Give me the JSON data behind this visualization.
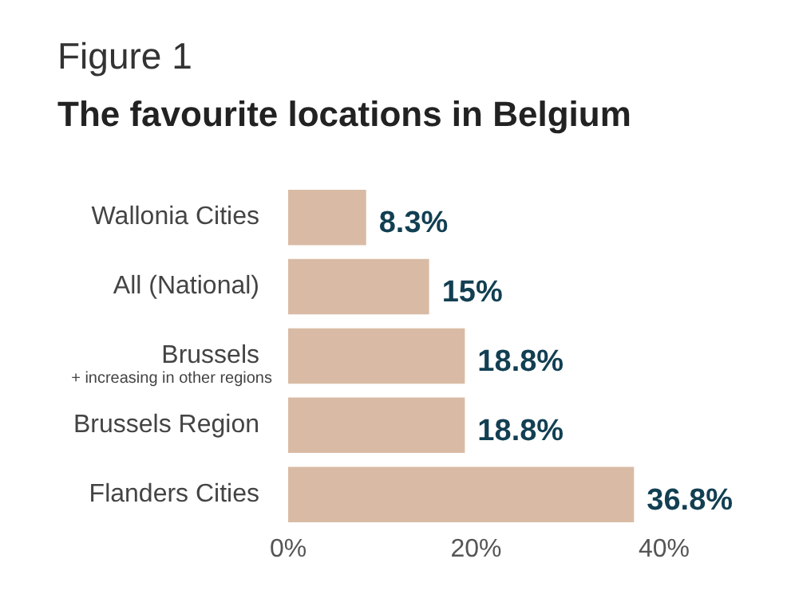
{
  "chart_data": {
    "type": "bar",
    "orientation": "horizontal",
    "subtitle": "Figure 1",
    "title": "The favourite locations in Belgium",
    "categories": [
      "Wallonia Cities",
      "All (National)",
      "Brussels",
      "Brussels Region",
      "Flanders Cities"
    ],
    "values": [
      8.3,
      15,
      18.8,
      18.8,
      36.8
    ],
    "value_labels": [
      "8.3%",
      "15%",
      "18.8%",
      "18.8%",
      "36.8%"
    ],
    "color": "#d9bba5",
    "xlim": [
      0,
      40
    ],
    "xticks": [
      {
        "value": 0,
        "label": "0%"
      },
      {
        "value": 20,
        "label": "20%"
      },
      {
        "value": 40,
        "label": "40%"
      }
    ],
    "annotations": [
      "+ increasing in other regions"
    ],
    "grid": false,
    "legend": false
  }
}
